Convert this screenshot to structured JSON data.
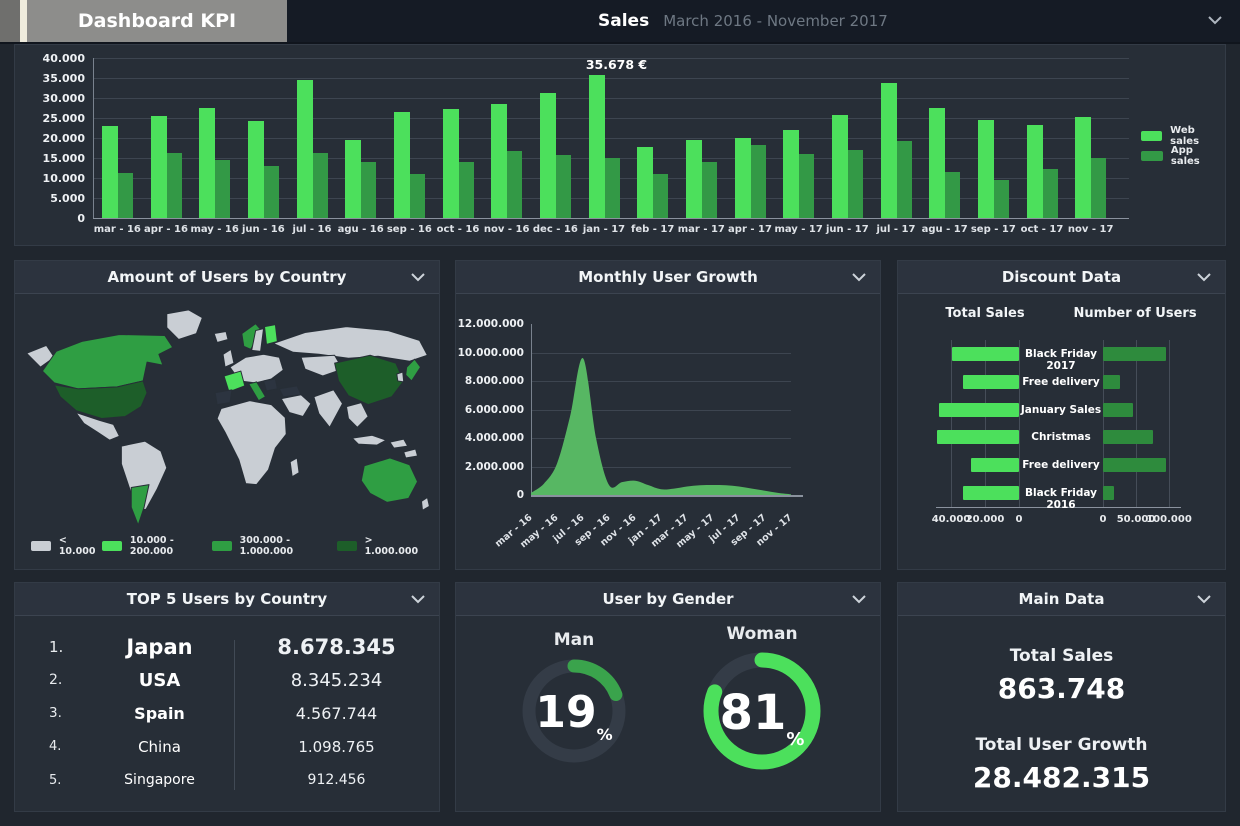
{
  "header": {
    "app_title": "Dashboard KPI"
  },
  "panels": {
    "map": {
      "title": "Amount of Users by Country"
    },
    "top5": {
      "title": "TOP 5 Users by Country",
      "rows": [
        {
          "rank": "1.",
          "country": "Japan",
          "value": "8.678.345"
        },
        {
          "rank": "2.",
          "country": "USA",
          "value": "8.345.234"
        },
        {
          "rank": "3.",
          "country": "Spain",
          "value": "4.567.744"
        },
        {
          "rank": "4.",
          "country": "China",
          "value": "1.098.765"
        },
        {
          "rank": "5.",
          "country": "Singapore",
          "value": "912.456"
        }
      ]
    },
    "main": {
      "title": "Main Data",
      "stats": [
        {
          "label": "Total Sales",
          "value": "863.748"
        },
        {
          "label": "Total User Growth",
          "value": "28.482.315"
        }
      ]
    }
  },
  "map_legend": [
    {
      "label": "< 10.000",
      "color": "#c9ced4"
    },
    {
      "label": "10.000 - 200.000",
      "color": "#4ce05c"
    },
    {
      "label": "300.000 - 1.000.000",
      "color": "#2f9e43"
    },
    {
      "label": "> 1.000.000",
      "color": "#1d5e29"
    }
  ],
  "chart_data": [
    {
      "id": "sales",
      "type": "bar",
      "title": "Sales",
      "subtitle": "March 2016 - November 2017",
      "categories": [
        "mar - 16",
        "apr - 16",
        "may - 16",
        "jun - 16",
        "jul - 16",
        "agu - 16",
        "sep - 16",
        "oct - 16",
        "nov - 16",
        "dec - 16",
        "jan - 17",
        "feb - 17",
        "mar - 17",
        "apr - 17",
        "may - 17",
        "jun - 17",
        "jul - 17",
        "agu - 17",
        "sep - 17",
        "oct - 17",
        "nov - 17"
      ],
      "series": [
        {
          "name": "Web sales",
          "color": "#4ce05c",
          "values": [
            23100,
            25400,
            27400,
            24300,
            34500,
            19400,
            26400,
            27200,
            28400,
            31300,
            35678,
            17800,
            19500,
            20100,
            21900,
            25700,
            33800,
            27500,
            24400,
            23200,
            25300
          ]
        },
        {
          "name": "App sales",
          "color": "#339946",
          "values": [
            11200,
            16200,
            14400,
            13100,
            16200,
            13900,
            11000,
            13900,
            16800,
            15700,
            14900,
            11000,
            14100,
            18300,
            16000,
            17100,
            19300,
            11400,
            9400,
            12300,
            14900
          ]
        }
      ],
      "ylim": [
        0,
        40000
      ],
      "ytick_labels": [
        "40.000",
        "35.000",
        "30.000",
        "25.000",
        "20.000",
        "15.000",
        "10.000",
        "5.000",
        "0"
      ],
      "annotation": {
        "text": "35.678 €",
        "category": "jan - 17",
        "series": "Web sales"
      },
      "legend_position": "right",
      "grid": true
    },
    {
      "id": "monthly-user-growth",
      "type": "area",
      "title": "Monthly User Growth",
      "x": [
        "mar - 16",
        "apr - 16",
        "may - 16",
        "jun - 16",
        "jul - 16",
        "agu - 16",
        "sep - 16",
        "oct - 16",
        "nov - 16",
        "dec - 16",
        "jan - 17",
        "feb - 17",
        "mar - 17",
        "apr - 17",
        "may - 17",
        "jun - 17",
        "jul - 17",
        "agu - 17",
        "sep - 17",
        "oct - 17",
        "nov - 17"
      ],
      "values": [
        150000,
        800000,
        2200000,
        5500000,
        9600000,
        4000000,
        700000,
        900000,
        1000000,
        700000,
        400000,
        450000,
        600000,
        680000,
        700000,
        680000,
        600000,
        450000,
        300000,
        150000,
        50000
      ],
      "ylim": [
        0,
        12000000
      ],
      "ytick_labels": [
        "12.000.000",
        "10.000.000",
        "8.000.000",
        "6.000.000",
        "4.000.000",
        "2.000.000",
        "0"
      ],
      "xtick_labels": [
        "mar - 16",
        "may - 16",
        "jul - 16",
        "sep - 16",
        "nov - 16",
        "jan - 17",
        "mar - 17",
        "may - 17",
        "jul - 17",
        "sep - 17",
        "nov - 17"
      ],
      "color": "#57b763",
      "grid": true
    },
    {
      "id": "discount-data",
      "type": "bar",
      "variant": "tornado",
      "title": "Discount Data",
      "categories": [
        "Black Friday 2017",
        "Free delivery",
        "January Sales",
        "Christmas",
        "Free delivery",
        "Black Friday 2016"
      ],
      "series": [
        {
          "name": "Total Sales",
          "side": "left",
          "color": "#4ce05c",
          "max": 48800,
          "values": [
            39200,
            33000,
            47000,
            48500,
            28400,
            33000
          ],
          "ticks": [
            {
              "label": "40.000",
              "value": 40000
            },
            {
              "label": "20.000",
              "value": 20000
            },
            {
              "label": "0",
              "value": 0
            }
          ]
        },
        {
          "name": "Number of Users",
          "side": "right",
          "color": "#2e8b3d",
          "max": 117000,
          "values": [
            96000,
            26000,
            45000,
            75500,
            96000,
            16500
          ],
          "ticks": [
            {
              "label": "0",
              "value": 0
            },
            {
              "label": "50.000",
              "value": 50000
            },
            {
              "label": "100.000",
              "value": 100000
            }
          ]
        }
      ]
    },
    {
      "id": "user-by-gender",
      "type": "pie",
      "title": "User by Gender",
      "slices": [
        {
          "label": "Man",
          "value": 19,
          "unit": "%",
          "color": "#3aa34c"
        },
        {
          "label": "Woman",
          "value": 81,
          "unit": "%",
          "color": "#4ce05c"
        }
      ],
      "track_color": "#343c47"
    }
  ]
}
